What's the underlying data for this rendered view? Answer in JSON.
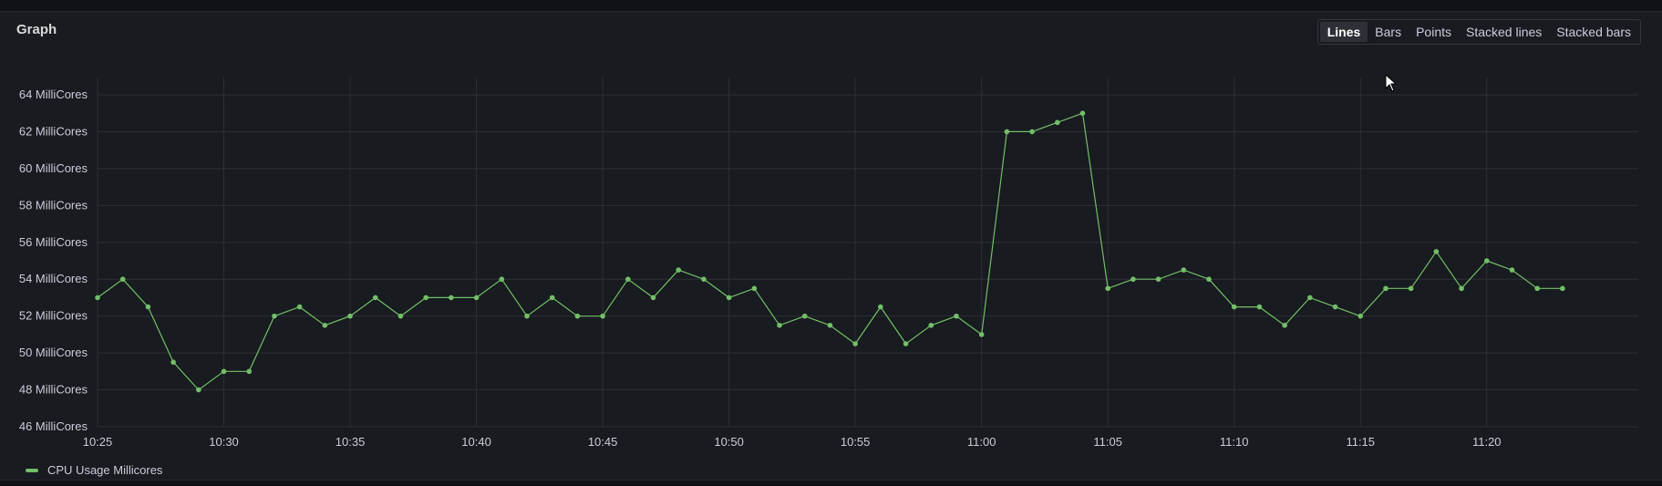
{
  "panel": {
    "title": "Graph"
  },
  "toggles": [
    {
      "label": "Lines",
      "active": true
    },
    {
      "label": "Bars",
      "active": false
    },
    {
      "label": "Points",
      "active": false
    },
    {
      "label": "Stacked lines",
      "active": false
    },
    {
      "label": "Stacked bars",
      "active": false
    }
  ],
  "chart_data": {
    "type": "line",
    "ylim": [
      46,
      65
    ],
    "yticks": [
      46,
      48,
      50,
      52,
      54,
      56,
      58,
      60,
      62,
      64
    ],
    "ytick_labels": [
      "46 MilliCores",
      "48 MilliCores",
      "50 MilliCores",
      "52 MilliCores",
      "54 MilliCores",
      "56 MilliCores",
      "58 MilliCores",
      "60 MilliCores",
      "62 MilliCores",
      "64 MilliCores"
    ],
    "xlim": [
      "10:25",
      "11:26"
    ],
    "xticks": [
      "10:25",
      "10:30",
      "10:35",
      "10:40",
      "10:45",
      "10:50",
      "10:55",
      "11:00",
      "11:05",
      "11:10",
      "11:15",
      "11:20"
    ],
    "grid": true,
    "legend": "bottom-left",
    "color": "#73bf69",
    "series": [
      {
        "name": "CPU Usage Millicores",
        "points": [
          [
            "10:25",
            53
          ],
          [
            "10:26",
            54
          ],
          [
            "10:27",
            52.5
          ],
          [
            "10:28",
            49.5
          ],
          [
            "10:29",
            48
          ],
          [
            "10:30",
            49
          ],
          [
            "10:31",
            49
          ],
          [
            "10:32",
            52
          ],
          [
            "10:33",
            52.5
          ],
          [
            "10:34",
            51.5
          ],
          [
            "10:35",
            52
          ],
          [
            "10:36",
            53
          ],
          [
            "10:37",
            52
          ],
          [
            "10:38",
            53
          ],
          [
            "10:39",
            53
          ],
          [
            "10:40",
            53
          ],
          [
            "10:41",
            54
          ],
          [
            "10:42",
            52
          ],
          [
            "10:43",
            53
          ],
          [
            "10:44",
            52
          ],
          [
            "10:45",
            52
          ],
          [
            "10:46",
            54
          ],
          [
            "10:47",
            53
          ],
          [
            "10:48",
            54.5
          ],
          [
            "10:49",
            54
          ],
          [
            "10:50",
            53
          ],
          [
            "10:51",
            53.5
          ],
          [
            "10:52",
            51.5
          ],
          [
            "10:53",
            52
          ],
          [
            "10:54",
            51.5
          ],
          [
            "10:55",
            50.5
          ],
          [
            "10:56",
            52.5
          ],
          [
            "10:57",
            50.5
          ],
          [
            "10:58",
            51.5
          ],
          [
            "10:59",
            52
          ],
          [
            "11:00",
            51
          ],
          [
            "11:01",
            62
          ],
          [
            "11:02",
            62
          ],
          [
            "11:03",
            62.5
          ],
          [
            "11:04",
            63
          ],
          [
            "11:05",
            53.5
          ],
          [
            "11:06",
            54
          ],
          [
            "11:07",
            54
          ],
          [
            "11:08",
            54.5
          ],
          [
            "11:09",
            54
          ],
          [
            "11:10",
            52.5
          ],
          [
            "11:11",
            52.5
          ],
          [
            "11:12",
            51.5
          ],
          [
            "11:13",
            53
          ],
          [
            "11:14",
            52.5
          ],
          [
            "11:15",
            52
          ],
          [
            "11:16",
            53.5
          ],
          [
            "11:17",
            53.5
          ],
          [
            "11:18",
            55.5
          ],
          [
            "11:19",
            53.5
          ],
          [
            "11:20",
            55
          ],
          [
            "11:21",
            54.5
          ],
          [
            "11:22",
            53.5
          ],
          [
            "11:23",
            53.5
          ]
        ]
      }
    ]
  }
}
